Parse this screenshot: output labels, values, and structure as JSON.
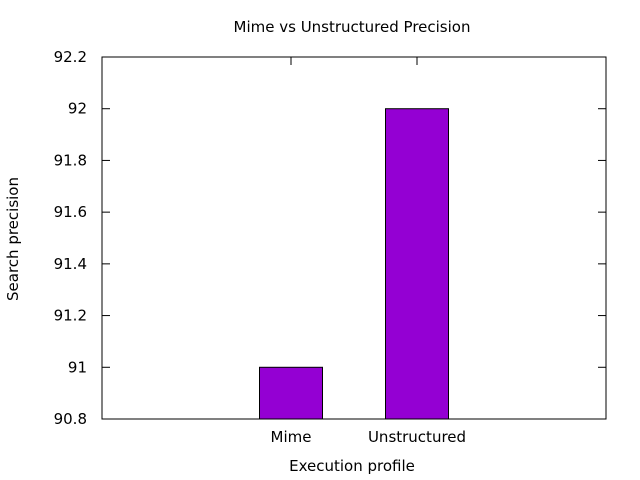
{
  "chart_data": {
    "type": "bar",
    "title": "Mime vs Unstructured Precision",
    "xlabel": "Execution profile",
    "ylabel": "Search precision",
    "categories": [
      "Mime",
      "Unstructured"
    ],
    "values": [
      91.0,
      92.0
    ],
    "ylim": [
      90.8,
      92.2
    ],
    "yticks": [
      "90.8",
      "91",
      "91.2",
      "91.4",
      "91.6",
      "91.8",
      "92",
      "92.2"
    ],
    "bar_color": "#9400d3",
    "grid": false,
    "legend": "none"
  }
}
